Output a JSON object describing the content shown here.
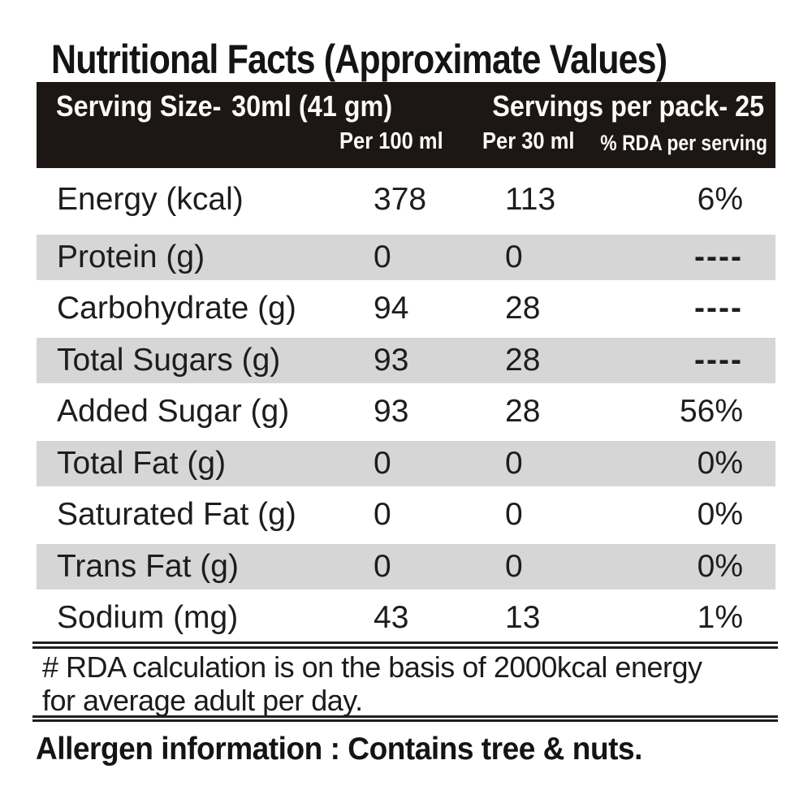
{
  "title": "Nutritional Facts (Approximate Values)",
  "header": {
    "serving_size_label": "Serving Size-",
    "serving_size_value": "30ml (41 gm)",
    "servings_per_pack": "Servings per pack- 25",
    "columns": {
      "per_100ml": "Per 100 ml",
      "per_30ml": "Per 30 ml",
      "rda": "% RDA per serving"
    }
  },
  "table": {
    "rows": [
      {
        "label": "Energy (kcal)",
        "per_100ml": "378",
        "per_30ml": "113",
        "rda": "6%"
      },
      {
        "label": "Protein (g)",
        "per_100ml": "0",
        "per_30ml": "0",
        "rda": "----"
      },
      {
        "label": "Carbohydrate (g)",
        "per_100ml": "94",
        "per_30ml": "28",
        "rda": "----"
      },
      {
        "label": "Total Sugars (g)",
        "per_100ml": "93",
        "per_30ml": "28",
        "rda": "----"
      },
      {
        "label": "Added Sugar (g)",
        "per_100ml": "93",
        "per_30ml": "28",
        "rda": "56%"
      },
      {
        "label": "Total Fat (g)",
        "per_100ml": "0",
        "per_30ml": "0",
        "rda": "0%"
      },
      {
        "label": "Saturated Fat (g)",
        "per_100ml": "0",
        "per_30ml": "0",
        "rda": "0%"
      },
      {
        "label": "Trans Fat (g)",
        "per_100ml": "0",
        "per_30ml": "0",
        "rda": "0%"
      },
      {
        "label": "Sodium (mg)",
        "per_100ml": "43",
        "per_30ml": "13",
        "rda": "1%"
      }
    ]
  },
  "notes": {
    "rda_lines": [
      "# RDA calculation is on the basis of 2000kcal energy",
      "for average adult per day."
    ],
    "allergen": "Allergen information : Contains tree & nuts."
  },
  "colors": {
    "header_background": "#1c1614",
    "header_text": "#fafafa",
    "stripe_row": "#d6d6d6",
    "body_text": "#1d1d1d",
    "page_background": "#ffffff"
  }
}
